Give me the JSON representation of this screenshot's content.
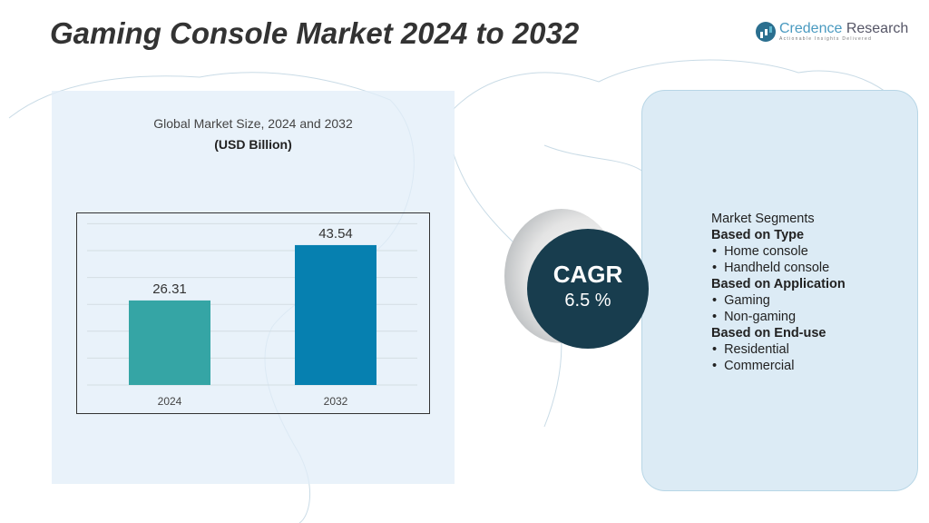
{
  "header": {
    "title": "Gaming Console Market 2024 to 2032"
  },
  "logo": {
    "name_part1": "Credence",
    "name_part2": " Research",
    "tagline": "Actionable Insights Delivered"
  },
  "chart_data": {
    "type": "bar",
    "title": "Global Market Size,  2024 and 2032",
    "subtitle": "(USD Billion)",
    "categories": [
      "2024",
      "2032"
    ],
    "values": [
      26.31,
      43.54
    ],
    "value_labels": [
      "26.31",
      "43.54"
    ],
    "colors": [
      "#35a5a5",
      "#0680b0"
    ],
    "ylim": [
      0,
      52
    ],
    "grid": true,
    "xlabel": "",
    "ylabel": ""
  },
  "cagr": {
    "label": "CAGR",
    "value": "6.5 %"
  },
  "segments": {
    "heading": "Market Segments",
    "groups": [
      {
        "title": "Based on Type",
        "items": [
          "Home console",
          "Handheld console"
        ]
      },
      {
        "title": "Based on Application",
        "items": [
          "Gaming",
          "Non-gaming"
        ]
      },
      {
        "title": "Based on End-use",
        "items": [
          "Residential",
          "Commercial"
        ]
      }
    ]
  }
}
